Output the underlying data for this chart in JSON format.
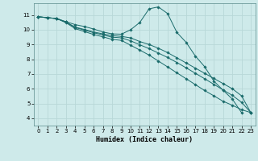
{
  "xlabel": "Humidex (Indice chaleur)",
  "xlim": [
    -0.5,
    23.5
  ],
  "ylim": [
    3.5,
    11.8
  ],
  "xticks": [
    0,
    1,
    2,
    3,
    4,
    5,
    6,
    7,
    8,
    9,
    10,
    11,
    12,
    13,
    14,
    15,
    16,
    17,
    18,
    19,
    20,
    21,
    22,
    23
  ],
  "yticks": [
    4,
    5,
    6,
    7,
    8,
    9,
    10,
    11
  ],
  "bg_color": "#ceeaea",
  "grid_color": "#b8d8d8",
  "line_color": "#1a6b6b",
  "lines": [
    {
      "x": [
        0,
        1,
        2,
        3,
        4,
        5,
        6,
        7,
        8,
        9,
        10,
        11,
        12,
        13,
        14,
        15,
        16,
        17,
        18,
        19,
        20,
        21,
        22
      ],
      "y": [
        10.88,
        10.82,
        10.76,
        10.55,
        10.35,
        10.22,
        10.05,
        9.85,
        9.72,
        9.7,
        10.0,
        10.5,
        11.42,
        11.55,
        11.1,
        9.82,
        9.15,
        8.22,
        7.5,
        6.52,
        5.9,
        5.3,
        4.38
      ]
    },
    {
      "x": [
        0,
        1,
        2,
        3,
        4,
        5,
        6,
        7,
        8,
        9,
        10,
        11,
        12,
        13,
        14,
        15,
        16,
        17,
        18,
        19,
        20,
        21,
        22,
        23
      ],
      "y": [
        10.88,
        10.82,
        10.76,
        10.52,
        10.18,
        10.02,
        9.85,
        9.72,
        9.6,
        9.55,
        9.45,
        9.2,
        9.0,
        8.75,
        8.45,
        8.1,
        7.75,
        7.4,
        7.05,
        6.7,
        6.35,
        6.0,
        5.52,
        4.38
      ]
    },
    {
      "x": [
        0,
        1,
        2,
        3,
        4,
        5,
        6,
        7,
        8,
        9,
        10,
        11,
        12,
        13,
        14,
        15,
        16,
        17,
        18,
        19,
        20,
        21,
        22,
        23
      ],
      "y": [
        10.88,
        10.82,
        10.76,
        10.52,
        10.15,
        9.98,
        9.8,
        9.65,
        9.5,
        9.45,
        9.25,
        8.98,
        8.72,
        8.42,
        8.12,
        7.78,
        7.42,
        7.05,
        6.68,
        6.3,
        5.92,
        5.55,
        5.08,
        4.38
      ]
    },
    {
      "x": [
        0,
        1,
        2,
        3,
        4,
        5,
        6,
        7,
        8,
        9,
        10,
        11,
        12,
        13,
        14,
        15,
        16,
        17,
        18,
        19,
        20,
        21,
        22,
        23
      ],
      "y": [
        10.88,
        10.82,
        10.76,
        10.48,
        10.08,
        9.88,
        9.68,
        9.52,
        9.35,
        9.28,
        8.95,
        8.62,
        8.28,
        7.88,
        7.48,
        7.08,
        6.68,
        6.28,
        5.88,
        5.52,
        5.15,
        4.88,
        4.58,
        4.38
      ]
    }
  ]
}
